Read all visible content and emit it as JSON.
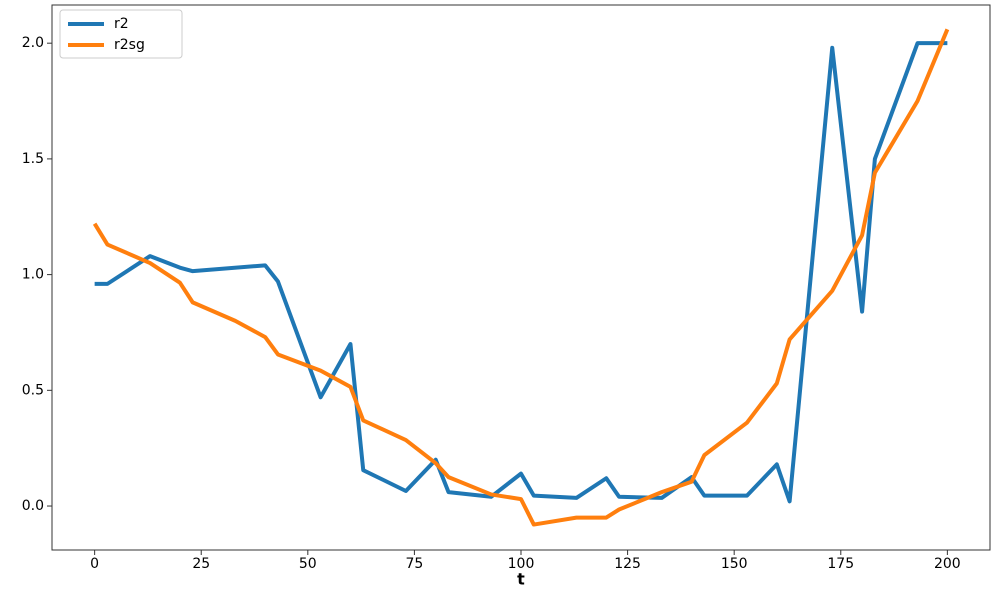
{
  "chart_data": {
    "type": "line",
    "xlabel": "t",
    "xlim": [
      -10,
      210
    ],
    "ylim": [
      -0.19,
      2.165
    ],
    "xticks": [
      0,
      25,
      50,
      75,
      100,
      125,
      150,
      175,
      200
    ],
    "yticks": [
      {
        "value": 0,
        "label": "0.0"
      },
      0.5,
      {
        "value": 1,
        "label": "1.0"
      },
      1.5,
      {
        "value": 2,
        "label": "2.0"
      }
    ],
    "legend": "upper left",
    "series": [
      {
        "name": "r2",
        "color": "#1f77b4",
        "x": [
          0,
          3,
          13,
          20,
          23,
          40,
          43,
          53,
          60,
          63,
          73,
          80,
          83,
          93,
          100,
          103,
          113,
          120,
          123,
          133,
          140,
          143,
          153,
          160,
          163,
          173,
          180,
          183,
          193,
          200
        ],
        "values": [
          0.96,
          0.96,
          1.08,
          1.03,
          1.015,
          1.04,
          0.97,
          0.47,
          0.7,
          0.155,
          0.065,
          0.2,
          0.06,
          0.04,
          0.14,
          0.045,
          0.035,
          0.12,
          0.04,
          0.035,
          0.125,
          0.045,
          0.045,
          0.18,
          0.02,
          1.98,
          0.84,
          1.5,
          2.0,
          2.0
        ]
      },
      {
        "name": "r2sg",
        "color": "#ff7f0e",
        "x": [
          0,
          3,
          13,
          20,
          23,
          33,
          40,
          43,
          53,
          60,
          63,
          73,
          80,
          83,
          93,
          100,
          103,
          113,
          120,
          123,
          133,
          140,
          143,
          153,
          160,
          163,
          173,
          180,
          183,
          193,
          200
        ],
        "values": [
          1.22,
          1.13,
          1.05,
          0.965,
          0.88,
          0.8,
          0.73,
          0.655,
          0.585,
          0.515,
          0.37,
          0.285,
          0.185,
          0.125,
          0.05,
          0.03,
          -0.08,
          -0.05,
          -0.05,
          -0.015,
          0.06,
          0.105,
          0.22,
          0.36,
          0.53,
          0.72,
          0.93,
          1.17,
          1.44,
          1.75,
          2.06
        ]
      }
    ]
  }
}
